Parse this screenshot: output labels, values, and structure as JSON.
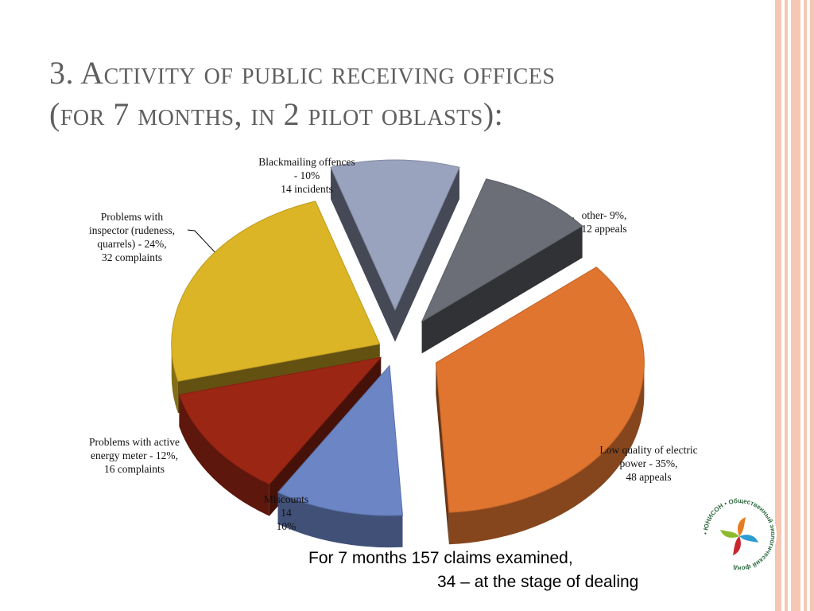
{
  "slide": {
    "title_line1": "3. Activity of public receiving offices",
    "title_line2": "(for 7 months, in 2 pilot oblasts):",
    "note_line1": "For 7 months  157 claims examined,",
    "note_line2": "34 – at the stage of dealing",
    "logo_text": "• ЮНИСОН • Общественный экологический фонд"
  },
  "chart_data": {
    "type": "pie",
    "title": "",
    "slices": [
      {
        "key": "blackmailing",
        "label_lines": [
          "Blackmailing offences",
          "- 10%",
          "14 incidents"
        ],
        "percent": 10,
        "count": 14,
        "color": "#9aa3be"
      },
      {
        "key": "other",
        "label_lines": [
          "other- 9%,",
          "12 appeals"
        ],
        "percent": 9,
        "count": 12,
        "color": "#6b6e76"
      },
      {
        "key": "low_quality",
        "label_lines": [
          "Low quality of electric",
          "power - 35%,",
          "48 appeals"
        ],
        "percent": 35,
        "count": 48,
        "color": "#e07530"
      },
      {
        "key": "miscounts",
        "label_lines": [
          "Miscounts",
          "14",
          "10%"
        ],
        "percent": 10,
        "count": 14,
        "color": "#6b85c5"
      },
      {
        "key": "meter",
        "label_lines": [
          "Problems with active",
          "energy meter - 12%,",
          "16 complaints"
        ],
        "percent": 12,
        "count": 16,
        "color": "#9b2614"
      },
      {
        "key": "inspector",
        "label_lines": [
          "Problems with",
          "inspector (rudeness,",
          "quarrels) - 24%,",
          "32 complaints"
        ],
        "percent": 24,
        "count": 32,
        "color": "#dcb526"
      }
    ]
  }
}
